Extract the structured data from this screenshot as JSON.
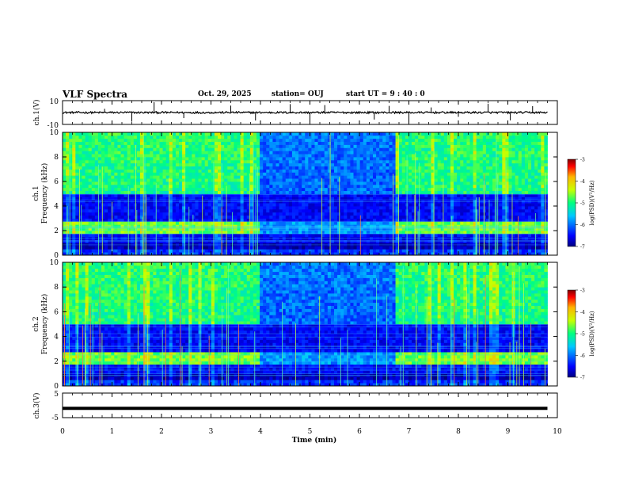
{
  "header": {
    "title": "VLF Spectra",
    "date": "Oct. 29, 2025",
    "station": "station= OUJ",
    "start_ut": "start  UT  =   9 : 40 : 0"
  },
  "chart_data": [
    {
      "id": "ch1-waveform",
      "type": "line",
      "ylabel": "ch.1(V)",
      "ylim": [
        -10,
        10
      ],
      "yticks": [
        "10",
        "-10"
      ],
      "xlim": [
        0,
        10
      ],
      "baseline": 0,
      "spikes_min": [
        0.85,
        1.4,
        1.85,
        2.45,
        3.4,
        3.9,
        4.6,
        5.0,
        5.3,
        6.3,
        6.6,
        7.0,
        7.45,
        8.0,
        8.6,
        9.05,
        9.5
      ]
    },
    {
      "id": "ch1-spectrogram",
      "type": "heatmap",
      "ylabel_line1": "ch.1",
      "ylabel_line2": "Frequency (kHz)",
      "ylim": [
        0,
        10
      ],
      "yticks": [
        "0",
        "2",
        "4",
        "6",
        "8",
        "10"
      ],
      "xlim": [
        0,
        9.8
      ],
      "quiet_window_min": [
        4.0,
        6.7
      ],
      "hiss_band_khz": [
        1.8,
        2.8
      ],
      "colorbar": {
        "label": "log(PSD)(V²/Hz)",
        "range": [
          -7,
          -3
        ],
        "ticks": [
          "-3",
          "-4",
          "-5",
          "-6",
          "-7"
        ]
      }
    },
    {
      "id": "ch2-spectrogram",
      "type": "heatmap",
      "ylabel_line1": "ch.2",
      "ylabel_line2": "Frequency (kHz)",
      "ylim": [
        0,
        10
      ],
      "yticks": [
        "0",
        "2",
        "4",
        "6",
        "8",
        "10"
      ],
      "xlim": [
        0,
        9.8
      ],
      "quiet_window_min": [
        4.0,
        6.7
      ],
      "hiss_band_khz": [
        1.8,
        2.8
      ],
      "colorbar": {
        "label": "log(PSD)(V²/Hz)",
        "range": [
          -7,
          -3
        ],
        "ticks": [
          "-3",
          "-4",
          "-5",
          "-6",
          "-7"
        ]
      }
    },
    {
      "id": "ch3-waveform",
      "type": "line",
      "ylabel": "ch.3(V)",
      "ylim": [
        -5,
        5
      ],
      "yticks": [
        "5",
        "-5"
      ],
      "xlim": [
        0,
        10
      ],
      "baseline": -1.2
    }
  ],
  "xaxis": {
    "label": "Time  (min)",
    "ticks": [
      "0",
      "1",
      "2",
      "3",
      "4",
      "5",
      "6",
      "7",
      "8",
      "9",
      "10"
    ]
  }
}
